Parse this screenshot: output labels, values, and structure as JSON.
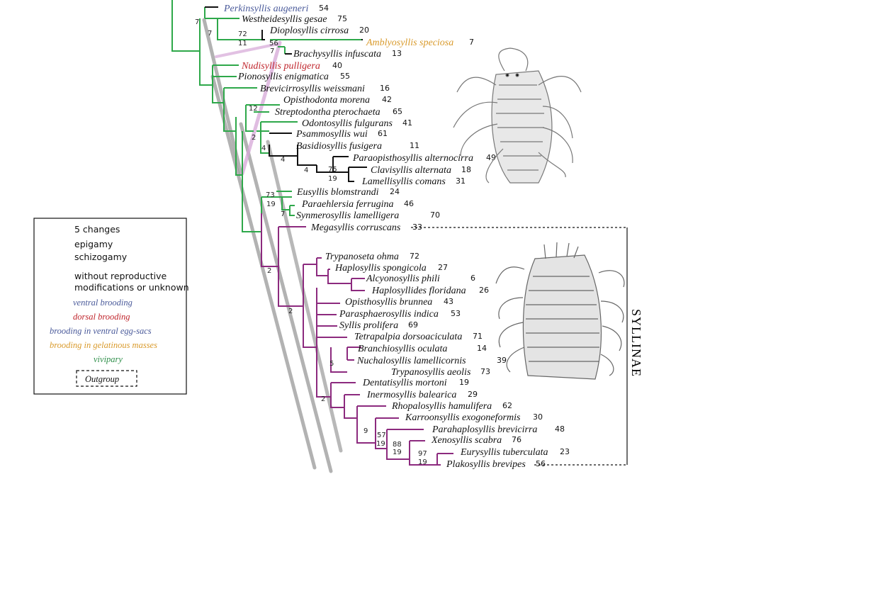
{
  "colors": {
    "epigamy": "#2ea84a",
    "schizogamy": "#8c2a7e",
    "neutral": "#111111",
    "ventral_brooding": "#4a5a9a",
    "dorsal_brooding": "#c0262d",
    "gelatinous": "#d99a2b",
    "vivipary": "#2f8f4a",
    "band": "#8a8a8a",
    "band_pink": "#d6a8d8"
  },
  "taxa": [
    {
      "name": "Perkinsyllis augeneri",
      "id": "54",
      "color": "#4a5a9a"
    },
    {
      "name": "Westheidesyllis gesae",
      "id": "75",
      "color": "#111111"
    },
    {
      "name": "Dioplosyllis cirrosa",
      "id": "20",
      "color": "#111111"
    },
    {
      "name": "Amblyosyllis speciosa",
      "id": "7",
      "color": "#d99a2b"
    },
    {
      "name": "Brachysyllis infuscata",
      "id": "13",
      "color": "#111111"
    },
    {
      "name": "Nudisyllis pulligera",
      "id": "40",
      "color": "#c0262d"
    },
    {
      "name": "Pionosyllis enigmatica",
      "id": "55",
      "color": "#111111"
    },
    {
      "name": "Brevicirrosyllis weissmani",
      "id": "16",
      "color": "#111111"
    },
    {
      "name": "Opisthodonta morena",
      "id": "42",
      "color": "#111111"
    },
    {
      "name": "Streptodontha pterochaeta",
      "id": "65",
      "color": "#111111"
    },
    {
      "name": "Odontosyllis fulgurans",
      "id": "41",
      "color": "#111111"
    },
    {
      "name": "Psammosyllis wui",
      "id": "61",
      "color": "#111111"
    },
    {
      "name": "Basidiosyllis fusigera",
      "id": "11",
      "color": "#111111"
    },
    {
      "name": "Paraopisthosyllis alternocirra",
      "id": "49",
      "color": "#111111"
    },
    {
      "name": "Clavisyllis alternata",
      "id": "18",
      "color": "#111111"
    },
    {
      "name": "Lamellisyllis comans",
      "id": "31",
      "color": "#111111"
    },
    {
      "name": "Eusyllis blomstrandi",
      "id": "24",
      "color": "#111111"
    },
    {
      "name": "Paraehlersia ferrugina",
      "id": "46",
      "color": "#111111"
    },
    {
      "name": "Synmerosyllis lamelligera",
      "id": "70",
      "color": "#111111"
    },
    {
      "name": "Megasyllis corruscans",
      "id": "33",
      "color": "#111111"
    },
    {
      "name": "Trypanoseta ohma",
      "id": "72",
      "color": "#111111"
    },
    {
      "name": "Haplosyllis spongicola",
      "id": "27",
      "color": "#111111"
    },
    {
      "name": "Alcyonosyllis phili",
      "id": "6",
      "color": "#111111"
    },
    {
      "name": "Haplosyllides floridana",
      "id": "26",
      "color": "#111111"
    },
    {
      "name": "Opisthosyllis brunnea",
      "id": "43",
      "color": "#111111"
    },
    {
      "name": "Parasphaerosyllis indica",
      "id": "53",
      "color": "#111111"
    },
    {
      "name": "Syllis prolifera",
      "id": "69",
      "color": "#111111"
    },
    {
      "name": "Tetrapalpia dorsoaciculata",
      "id": "71",
      "color": "#111111"
    },
    {
      "name": "Branchiosyllis oculata",
      "id": "14",
      "color": "#111111"
    },
    {
      "name": "Nuchalosyllis lamellicornis",
      "id": "39",
      "color": "#111111"
    },
    {
      "name": "Trypanosyllis aeolis",
      "id": "73",
      "color": "#111111"
    },
    {
      "name": "Dentatisyllis mortoni",
      "id": "19",
      "color": "#111111"
    },
    {
      "name": "Inermosyllis balearica",
      "id": "29",
      "color": "#111111"
    },
    {
      "name": "Rhopalosyllis hamulifera",
      "id": "62",
      "color": "#111111"
    },
    {
      "name": "Karroonsyllis exogoneformis",
      "id": "30",
      "color": "#111111"
    },
    {
      "name": "Parahaplosyllis brevicirra",
      "id": "48",
      "color": "#111111"
    },
    {
      "name": "Xenosyllis scabra",
      "id": "76",
      "color": "#111111"
    },
    {
      "name": "Eurysyllis tuberculata",
      "id": "23",
      "color": "#111111"
    },
    {
      "name": "Plakosyllis brevipes",
      "id": "56",
      "color": "#111111"
    }
  ],
  "support_values": [
    "7",
    "7",
    "72",
    "11",
    "56",
    "7",
    "12",
    "2",
    "4",
    "4",
    "4",
    "75",
    "19",
    "73",
    "19",
    "7",
    "2",
    "2",
    "5",
    "2",
    "9",
    "57",
    "19",
    "88",
    "19",
    "97",
    "19"
  ],
  "clade_label": "SYLLINAE",
  "legend": {
    "changes": "5 changes",
    "epigamy": "epigamy",
    "schizogamy": "schizogamy",
    "unknown_line1": "without reproductive",
    "unknown_line2": "modifications or unknown",
    "ventral_brooding": "ventral brooding",
    "dorsal_brooding": "dorsal brooding",
    "ventral_egg_sacs": "brooding in ventral egg-sacs",
    "gelatinous": "brooding in gelatinous masses",
    "vivipary": "vivipary",
    "outgroup": "Outgroup"
  }
}
